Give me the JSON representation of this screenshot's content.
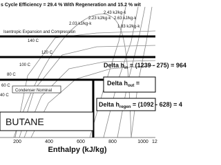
{
  "header": {
    "title": "s Cycle Efficiency = 29.4 % With Regeneration and 15.2 % wit"
  },
  "entropy_labels": [
    "2.43 kJ/kg-k",
    "2.63 kJ/kg-k",
    "2.23 kJ/kg-k",
    "2.03 kJ/kg-k",
    "1.83 kJ/kg-k"
  ],
  "process_label": "Isentropic Expansion and Compression",
  "isotherms": [
    "140 C",
    "120 C",
    "100 C",
    "80 C",
    "60 C",
    "40 C"
  ],
  "annotations": {
    "delta_in": {
      "text": "Delta h",
      "sub": "in",
      "rest": " = (1239 - 275) = 964"
    },
    "delta_out": {
      "text": "Delta h",
      "sub": "out",
      "rest": " ="
    },
    "delta_regen": {
      "text": "Delta h",
      "sub": "regen",
      "rest": " = (1092 - 628) = 4"
    }
  },
  "condenser": "Condenser Nominal",
  "fluid": "BUTANE",
  "x_axis": {
    "ticks": [
      "200",
      "400",
      "600",
      "800",
      "1000",
      "12"
    ],
    "label": "Enthalpy (kJ/kg)"
  }
}
